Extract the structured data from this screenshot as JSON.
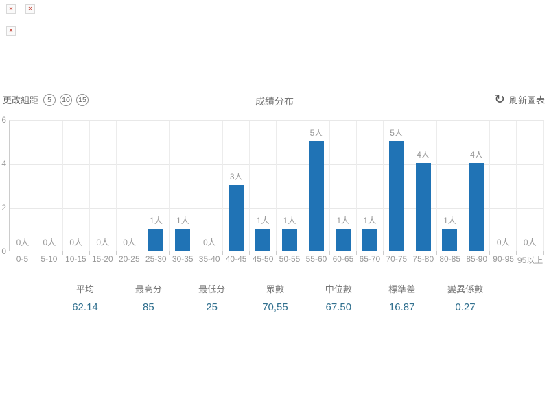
{
  "top_left_icons": [
    {
      "icon": "broken-image-icon",
      "glyph": "✕"
    },
    {
      "icon": "broken-image-icon",
      "glyph": "✕"
    },
    {
      "icon": "broken-image-icon",
      "glyph": "✕"
    }
  ],
  "header": {
    "bin_label": "更改組距",
    "bin_options": [
      "5",
      "10",
      "15"
    ],
    "title": "成績分布",
    "refresh_icon": "refresh-icon",
    "refresh_icon_glyph": "↻",
    "refresh_label": "刷新圖表"
  },
  "chart_data": {
    "type": "bar",
    "title": "成績分布",
    "categories": [
      "0-5",
      "5-10",
      "10-15",
      "15-20",
      "20-25",
      "25-30",
      "30-35",
      "35-40",
      "40-45",
      "45-50",
      "50-55",
      "55-60",
      "60-65",
      "65-70",
      "70-75",
      "75-80",
      "80-85",
      "85-90",
      "90-95",
      "95以上"
    ],
    "values": [
      0,
      0,
      0,
      0,
      0,
      1,
      1,
      0,
      3,
      1,
      1,
      5,
      1,
      1,
      5,
      4,
      1,
      4,
      0,
      0
    ],
    "unit_suffix": "人",
    "xlabel": "",
    "ylabel": "",
    "ylim": [
      0,
      6
    ],
    "yticks": [
      0,
      2,
      4,
      6
    ],
    "grid": true,
    "legend": false,
    "bar_color": "#2073b5"
  },
  "stats": [
    {
      "label": "平均",
      "value": "62.14"
    },
    {
      "label": "最高分",
      "value": "85"
    },
    {
      "label": "最低分",
      "value": "25"
    },
    {
      "label": "眾數",
      "value": "70,55"
    },
    {
      "label": "中位數",
      "value": "67.50"
    },
    {
      "label": "標準差",
      "value": "16.87"
    },
    {
      "label": "變異係數",
      "value": "0.27"
    }
  ],
  "colors": {
    "bar": "#2073b5",
    "axis_text": "#999999",
    "grid_line": "#e8e8e8",
    "axis_line": "#cccccc",
    "stat_value": "#31708f",
    "header_text": "#666666"
  }
}
